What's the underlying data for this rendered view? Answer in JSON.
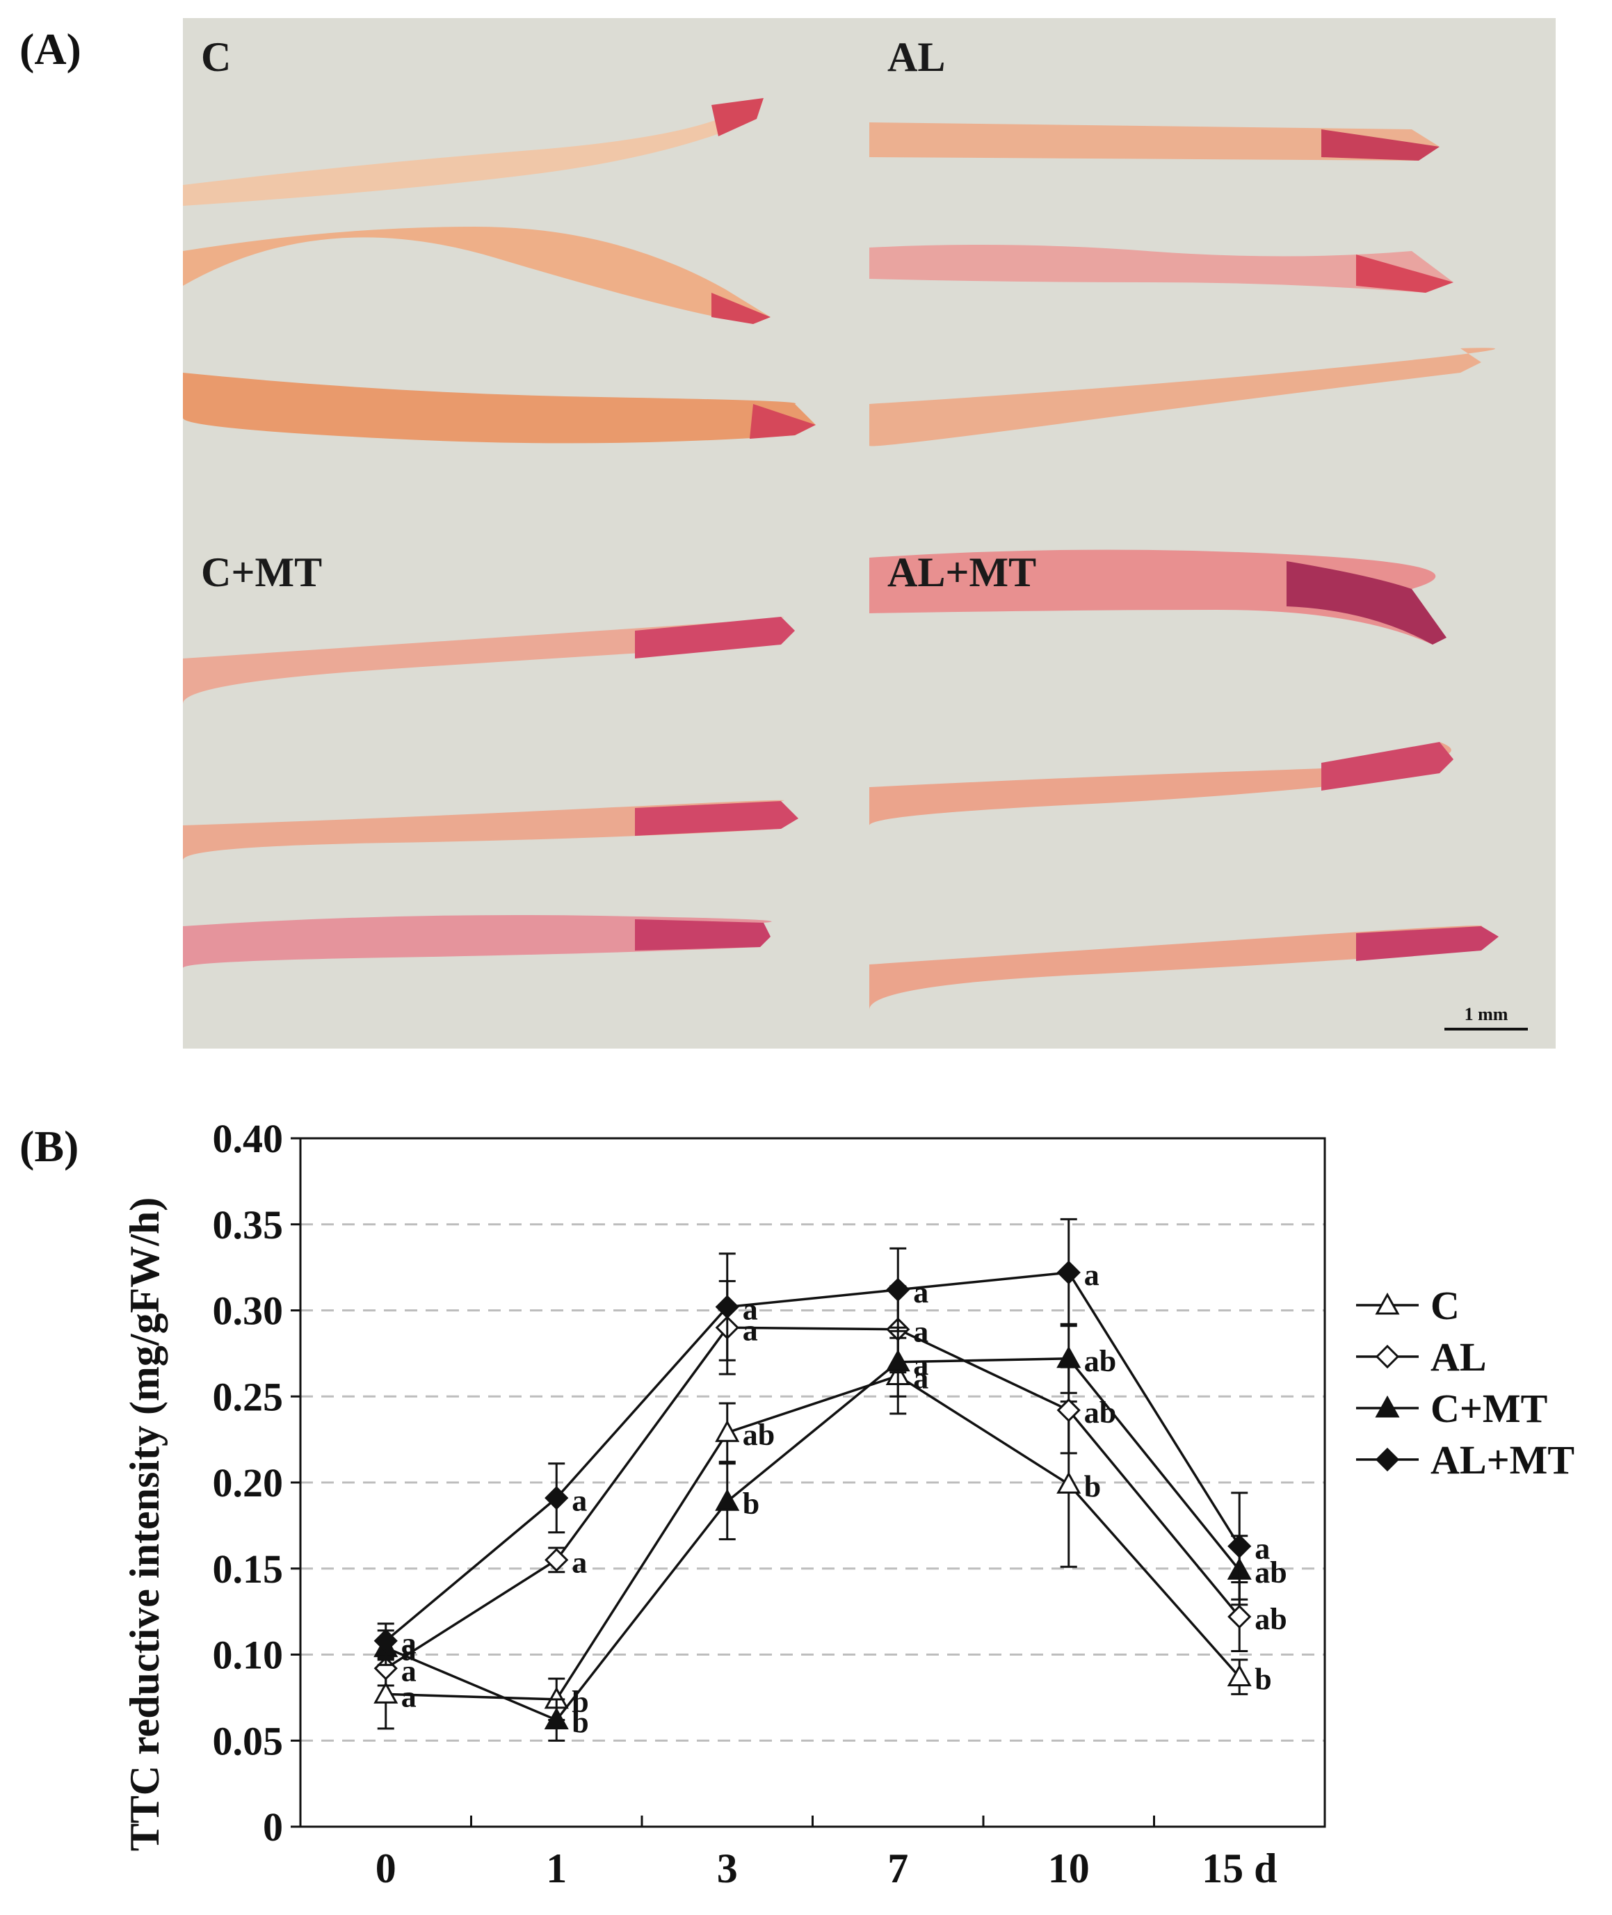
{
  "panel_a": {
    "label": "(A)",
    "panels": [
      {
        "label": "C"
      },
      {
        "label": "AL"
      },
      {
        "label": "C+MT"
      },
      {
        "label": "AL+MT"
      }
    ],
    "scale_bar": "1 mm"
  },
  "panel_b": {
    "label": "(B)"
  },
  "chart_data": {
    "type": "line",
    "title": "",
    "xlabel": "",
    "ylabel": "TTC reductive intensity (mg/gFW/h)",
    "categories": [
      "0",
      "1",
      "3",
      "7",
      "10",
      "15 d"
    ],
    "ylim": [
      0,
      0.4
    ],
    "yticks": [
      "0",
      "0.05",
      "0.10",
      "0.15",
      "0.20",
      "0.25",
      "0.30",
      "0.35",
      "0.40"
    ],
    "grid": "horizontal dashed",
    "legend_position": "right",
    "series": [
      {
        "name": "C",
        "marker": "open-triangle",
        "values": [
          0.077,
          0.074,
          0.229,
          0.262,
          0.199,
          0.087
        ],
        "errors": [
          0.02,
          0.012,
          0.017,
          0.022,
          0.048,
          0.01
        ],
        "labels": [
          "a",
          "b",
          "ab",
          "a",
          "b",
          "b"
        ]
      },
      {
        "name": "AL",
        "marker": "open-diamond",
        "values": [
          0.092,
          0.155,
          0.29,
          0.289,
          0.242,
          0.122
        ],
        "errors": [
          0.01,
          0.007,
          0.027,
          0.025,
          0.025,
          0.02
        ],
        "labels": [
          "a",
          "a",
          "a",
          "a",
          "ab",
          "ab"
        ]
      },
      {
        "name": "C+MT",
        "marker": "filled-triangle",
        "values": [
          0.104,
          0.062,
          0.189,
          0.27,
          0.272,
          0.149
        ],
        "errors": [
          0.01,
          0.012,
          0.022,
          0.02,
          0.02,
          0.02
        ],
        "labels": [
          "a",
          "b",
          "b",
          "a",
          "ab",
          "ab"
        ]
      },
      {
        "name": "AL+MT",
        "marker": "filled-diamond",
        "values": [
          0.108,
          0.191,
          0.302,
          0.312,
          0.322,
          0.163
        ],
        "errors": [
          0.01,
          0.02,
          0.031,
          0.024,
          0.031,
          0.031
        ],
        "labels": [
          "a",
          "a",
          "a",
          "a",
          "a",
          "a"
        ]
      }
    ]
  }
}
